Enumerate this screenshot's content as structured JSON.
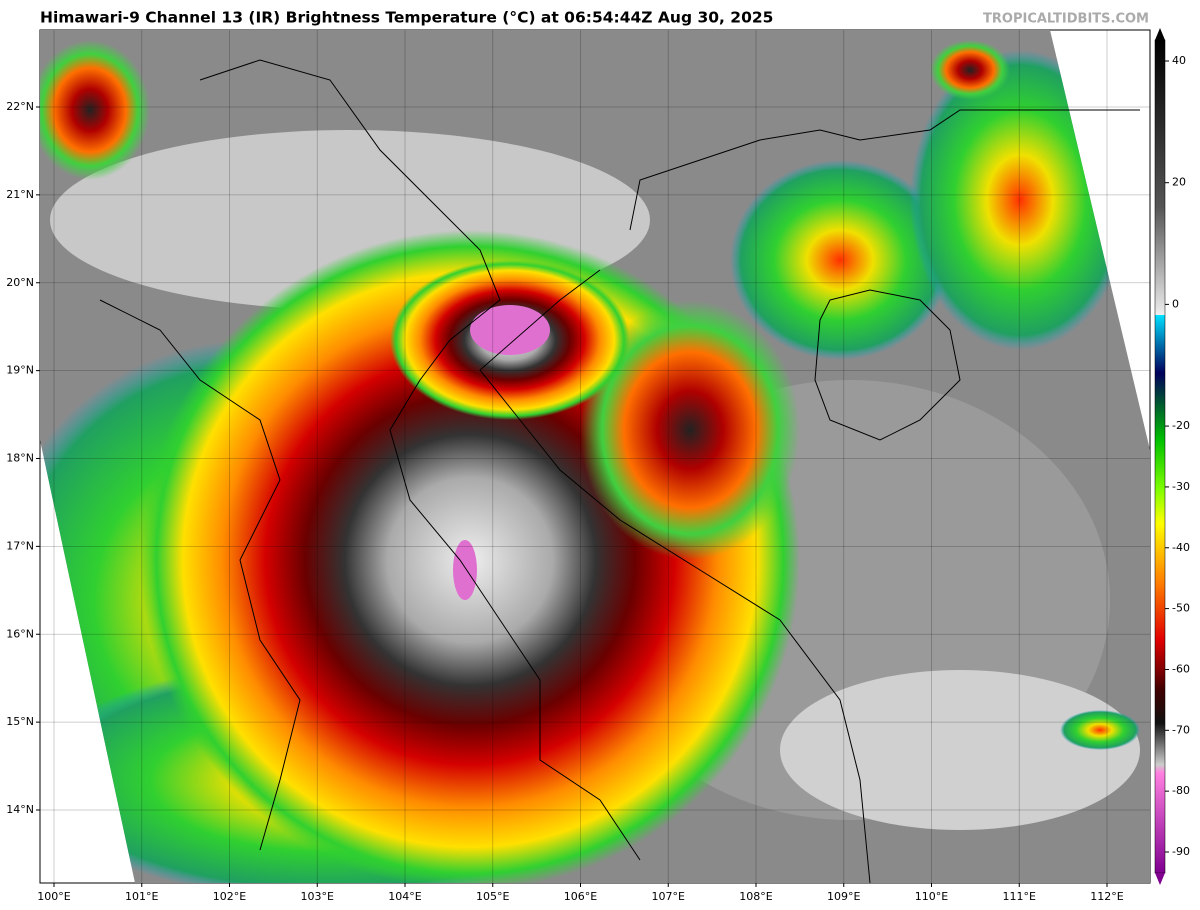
{
  "title": "Himawari-9 Channel 13 (IR) Brightness Temperature (°C) at 06:54:44Z Aug 30, 2025",
  "watermark": "TROPICALTIDBITS.COM",
  "map": {
    "lat_ticks": [
      {
        "value": 22,
        "label": "22°N"
      },
      {
        "value": 21,
        "label": "21°N"
      },
      {
        "value": 20,
        "label": "20°N"
      },
      {
        "value": 19,
        "label": "19°N"
      },
      {
        "value": 18,
        "label": "18°N"
      },
      {
        "value": 17,
        "label": "17°N"
      },
      {
        "value": 16,
        "label": "16°N"
      },
      {
        "value": 15,
        "label": "15°N"
      },
      {
        "value": 14,
        "label": "14°N"
      }
    ],
    "lon_ticks": [
      {
        "value": 100,
        "label": "100°E"
      },
      {
        "value": 101,
        "label": "101°E"
      },
      {
        "value": 102,
        "label": "102°E"
      },
      {
        "value": 103,
        "label": "103°E"
      },
      {
        "value": 104,
        "label": "104°E"
      },
      {
        "value": 105,
        "label": "105°E"
      },
      {
        "value": 106,
        "label": "106°E"
      },
      {
        "value": 107,
        "label": "107°E"
      },
      {
        "value": 108,
        "label": "108°E"
      },
      {
        "value": 109,
        "label": "109°E"
      },
      {
        "value": 110,
        "label": "110°E"
      },
      {
        "value": 111,
        "label": "111°E"
      },
      {
        "value": 112,
        "label": "112°E"
      }
    ]
  },
  "colorbar": {
    "ticks": [
      40,
      20,
      0,
      -20,
      -30,
      -40,
      -50,
      -60,
      -70,
      -80,
      -90
    ]
  }
}
